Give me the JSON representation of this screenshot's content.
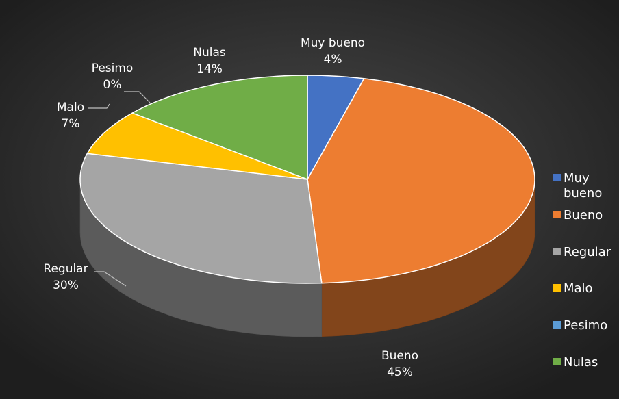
{
  "chart_data": {
    "type": "pie",
    "style": "3d",
    "title": "",
    "legend_position": "right",
    "categories": [
      "Muy bueno",
      "Bueno",
      "Regular",
      "Malo",
      "Pesimo",
      "Nulas"
    ],
    "values": [
      4,
      45,
      30,
      7,
      0,
      14
    ],
    "labels": [
      {
        "name": "Muy bueno",
        "percent": "4%"
      },
      {
        "name": "Bueno",
        "percent": "45%"
      },
      {
        "name": "Regular",
        "percent": "30%"
      },
      {
        "name": "Malo",
        "percent": "7%"
      },
      {
        "name": "Pesimo",
        "percent": "0%"
      },
      {
        "name": "Nulas",
        "percent": "14%"
      }
    ],
    "legend": [
      {
        "line1": "Muy",
        "line2": "bueno"
      },
      {
        "line1": "Bueno",
        "line2": ""
      },
      {
        "line1": "Regular",
        "line2": ""
      },
      {
        "line1": "Malo",
        "line2": ""
      },
      {
        "line1": "Pesimo",
        "line2": ""
      },
      {
        "line1": "Nulas",
        "line2": ""
      }
    ],
    "colors": [
      "#4472c4",
      "#ed7d31",
      "#a5a5a5",
      "#ffc000",
      "#5b9bd5",
      "#70ad47"
    ],
    "background": "#2d2d2d"
  }
}
